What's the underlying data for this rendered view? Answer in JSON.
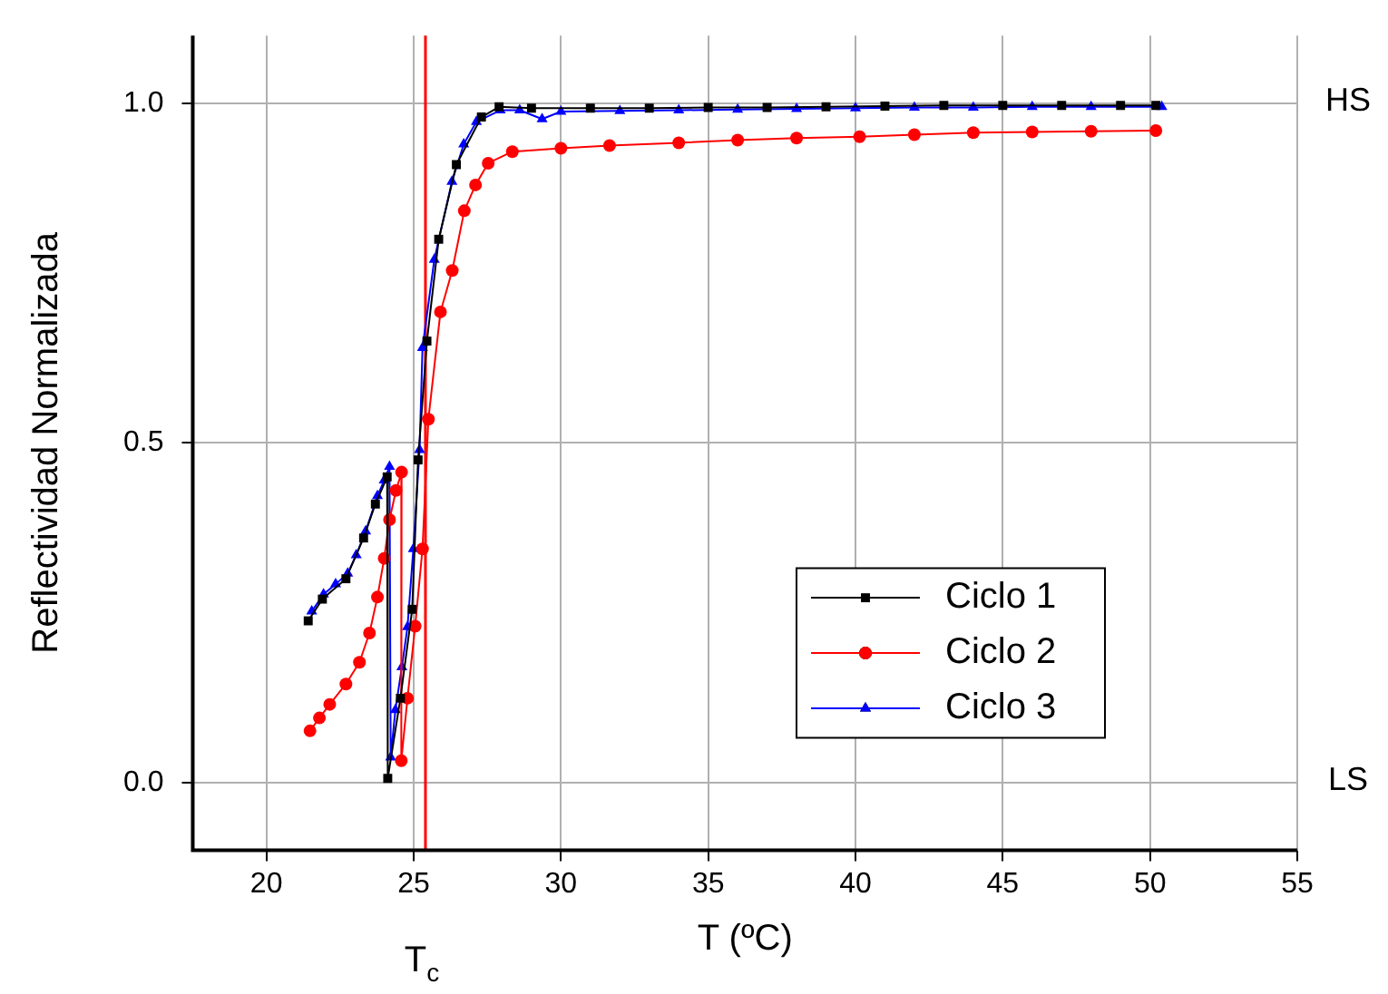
{
  "chart_data": {
    "type": "line",
    "xlabel": "T (ºC)",
    "ylabel": "Reflectividad Normalizada",
    "xlim": [
      17.5,
      55
    ],
    "xticks": [
      20,
      25,
      30,
      35,
      40,
      45,
      50,
      55
    ],
    "ylim": [
      -0.1,
      1.1
    ],
    "yticks": [
      {
        "value": 0,
        "label": "0.0"
      },
      {
        "value": 0.5,
        "label": "0.5"
      },
      {
        "value": 1,
        "label": "1.0"
      }
    ],
    "grid": true,
    "legend": "bottom right",
    "line_style": "solid",
    "ref_lines": [
      {
        "axis": "x",
        "value": 25.4,
        "label": "T$_{c}$",
        "color": "#ff0000"
      }
    ],
    "annotations": [
      "HS",
      "LS"
    ],
    "series": [
      {
        "name": "Ciclo 1",
        "color": "#000000",
        "marker": "square",
        "x": [
          21.42,
          21.9,
          22.7,
          23.3,
          23.7,
          24.1,
          24.12,
          24.55,
          24.95,
          25.15,
          25.45,
          25.85,
          26.45,
          27.3,
          27.9,
          29,
          31,
          33,
          35,
          37,
          39,
          41,
          43,
          45,
          47,
          49,
          50.2
        ],
        "values": [
          0.238,
          0.27,
          0.3,
          0.36,
          0.41,
          0.45,
          0.006,
          0.124,
          0.255,
          0.475,
          0.65,
          0.8,
          0.91,
          0.98,
          0.995,
          0.993,
          0.993,
          0.993,
          0.994,
          0.994,
          0.995,
          0.996,
          0.997,
          0.997,
          0.997,
          0.997,
          0.997
        ]
      },
      {
        "name": "Ciclo 2",
        "color": "#ff0000",
        "marker": "circle",
        "x": [
          21.48,
          21.8,
          22.15,
          22.7,
          23.16,
          23.5,
          23.77,
          24.0,
          24.18,
          24.4,
          24.59,
          24.58,
          24.79,
          25.05,
          25.3,
          25.5,
          25.91,
          26.31,
          26.72,
          27.1,
          27.53,
          28.35,
          30,
          31.65,
          34,
          36,
          38,
          40.14,
          42,
          44,
          46,
          48,
          50.2
        ],
        "values": [
          0.076,
          0.095,
          0.115,
          0.145,
          0.177,
          0.22,
          0.273,
          0.33,
          0.387,
          0.43,
          0.457,
          0.032,
          0.124,
          0.23,
          0.344,
          0.535,
          0.693,
          0.754,
          0.842,
          0.88,
          0.912,
          0.929,
          0.934,
          0.938,
          0.942,
          0.946,
          0.949,
          0.951,
          0.954,
          0.957,
          0.958,
          0.959,
          0.96
        ]
      },
      {
        "name": "Ciclo 3",
        "color": "#0000ff",
        "marker": "triangle",
        "x": [
          21.54,
          21.94,
          22.35,
          22.76,
          23.05,
          23.37,
          23.77,
          24.0,
          24.18,
          24.22,
          24.38,
          24.6,
          24.79,
          24.99,
          25.2,
          25.3,
          25.7,
          26.3,
          26.7,
          27.13,
          27.94,
          28.6,
          29.36,
          30,
          32,
          34,
          36,
          38,
          40,
          42,
          44,
          46,
          48,
          50.4
        ],
        "values": [
          0.252,
          0.277,
          0.292,
          0.308,
          0.335,
          0.37,
          0.422,
          0.445,
          0.465,
          0.037,
          0.107,
          0.17,
          0.229,
          0.344,
          0.49,
          0.64,
          0.77,
          0.885,
          0.94,
          0.973,
          0.99,
          0.99,
          0.977,
          0.988,
          0.989,
          0.99,
          0.991,
          0.992,
          0.993,
          0.994,
          0.994,
          0.995,
          0.995,
          0.995
        ]
      }
    ]
  }
}
